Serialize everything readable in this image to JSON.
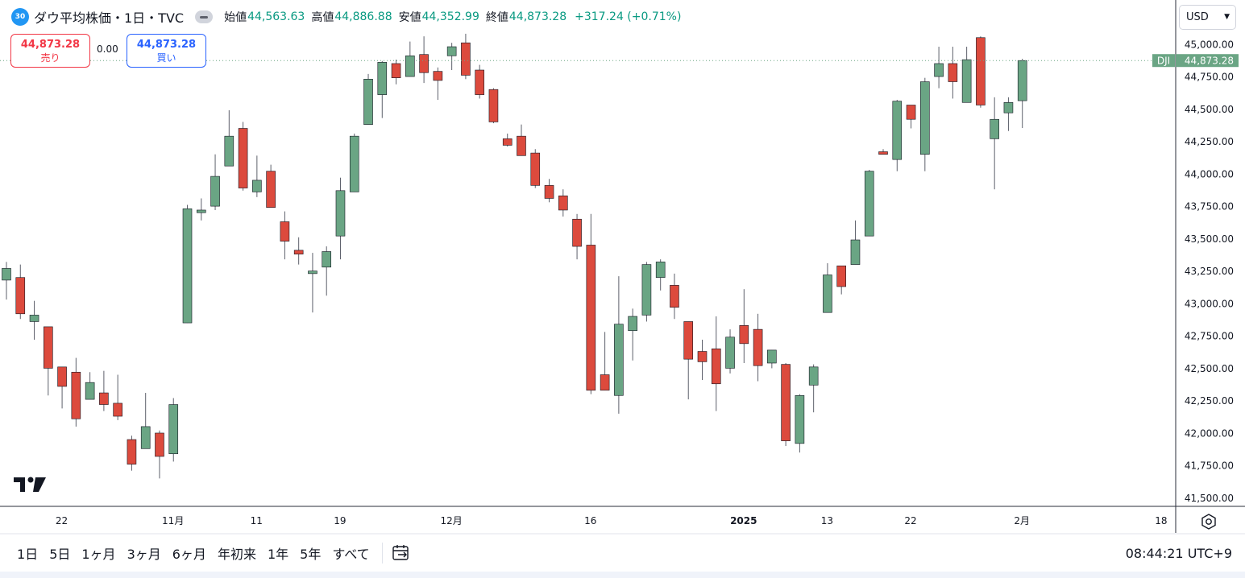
{
  "legend": {
    "badge": "30",
    "title": "ダウ平均株価・1日・TVC",
    "open_label": "始値",
    "open_value": "44,563.63",
    "high_label": "高値",
    "high_value": "44,886.88",
    "low_label": "安値",
    "low_value": "44,352.99",
    "close_label": "終値",
    "close_value": "44,873.28",
    "change": "+317.24 (+0.71%)"
  },
  "order": {
    "sell_price": "44,873.28",
    "sell_label": "売り",
    "spread": "0.00",
    "buy_price": "44,873.28",
    "buy_label": "買い"
  },
  "currency": "USD",
  "price_tag": {
    "symbol": "DJI",
    "value": "44,873.28"
  },
  "y_ticks": [
    "45,000.00",
    "44,750.00",
    "44,500.00",
    "44,250.00",
    "44,000.00",
    "43,750.00",
    "43,500.00",
    "43,250.00",
    "43,000.00",
    "42,750.00",
    "42,500.00",
    "42,250.00",
    "42,000.00",
    "41,750.00",
    "41,500.00"
  ],
  "x_ticks": [
    {
      "label": "22",
      "index": 2,
      "bold": false
    },
    {
      "label": "11月",
      "index": 10,
      "bold": false
    },
    {
      "label": "11",
      "index": 16,
      "bold": false
    },
    {
      "label": "19",
      "index": 22,
      "bold": false
    },
    {
      "label": "12月",
      "index": 30,
      "bold": false
    },
    {
      "label": "16",
      "index": 40,
      "bold": false
    },
    {
      "label": "2025",
      "index": 51,
      "bold": true
    },
    {
      "label": "13",
      "index": 57,
      "bold": false
    },
    {
      "label": "22",
      "index": 63,
      "bold": false
    },
    {
      "label": "2月",
      "index": 71,
      "bold": false
    },
    {
      "label": "18",
      "index": 81,
      "bold": false
    }
  ],
  "ranges": [
    "1日",
    "5日",
    "1ヶ月",
    "3ヶ月",
    "6ヶ月",
    "年初来",
    "1年",
    "5年",
    "すべて"
  ],
  "clock": "08:44:21 UTC+9",
  "colors": {
    "up": "#6aa584",
    "down": "#dc4a3d",
    "wick": "#5d606b",
    "tag": "#6aa584"
  },
  "chart_data": {
    "type": "candlestick",
    "y_min": 41441,
    "y_max": 45123,
    "last_price": 44873.28,
    "candles": [
      {
        "o": 43180,
        "h": 43320,
        "l": 43030,
        "c": 43270
      },
      {
        "o": 43200,
        "h": 43300,
        "l": 42880,
        "c": 42920
      },
      {
        "o": 42860,
        "h": 43020,
        "l": 42720,
        "c": 42910
      },
      {
        "o": 42820,
        "h": 42820,
        "l": 42290,
        "c": 42500
      },
      {
        "o": 42510,
        "h": 42510,
        "l": 42190,
        "c": 42360
      },
      {
        "o": 42470,
        "h": 42580,
        "l": 42050,
        "c": 42110
      },
      {
        "o": 42260,
        "h": 42470,
        "l": 42260,
        "c": 42390
      },
      {
        "o": 42310,
        "h": 42480,
        "l": 42170,
        "c": 42220
      },
      {
        "o": 42230,
        "h": 42450,
        "l": 42100,
        "c": 42130
      },
      {
        "o": 41950,
        "h": 41980,
        "l": 41710,
        "c": 41760
      },
      {
        "o": 41880,
        "h": 42310,
        "l": 41880,
        "c": 42050
      },
      {
        "o": 42000,
        "h": 42020,
        "l": 41650,
        "c": 41820
      },
      {
        "o": 41840,
        "h": 42270,
        "l": 41780,
        "c": 42220
      },
      {
        "o": 42850,
        "h": 43760,
        "l": 42850,
        "c": 43730
      },
      {
        "o": 43700,
        "h": 43810,
        "l": 43640,
        "c": 43720
      },
      {
        "o": 43750,
        "h": 44150,
        "l": 43720,
        "c": 43980
      },
      {
        "o": 44060,
        "h": 44490,
        "l": 44060,
        "c": 44290
      },
      {
        "o": 44350,
        "h": 44400,
        "l": 43870,
        "c": 43890
      },
      {
        "o": 43860,
        "h": 44140,
        "l": 43820,
        "c": 43950
      },
      {
        "o": 44020,
        "h": 44070,
        "l": 43750,
        "c": 43740
      },
      {
        "o": 43630,
        "h": 43710,
        "l": 43340,
        "c": 43480
      },
      {
        "o": 43410,
        "h": 43510,
        "l": 43300,
        "c": 43380
      },
      {
        "o": 43230,
        "h": 43390,
        "l": 42930,
        "c": 43250
      },
      {
        "o": 43280,
        "h": 43440,
        "l": 43060,
        "c": 43400
      },
      {
        "o": 43520,
        "h": 43970,
        "l": 43340,
        "c": 43870
      },
      {
        "o": 43860,
        "h": 44310,
        "l": 43860,
        "c": 44290
      },
      {
        "o": 44380,
        "h": 44770,
        "l": 44380,
        "c": 44730
      },
      {
        "o": 44610,
        "h": 44870,
        "l": 44430,
        "c": 44860
      },
      {
        "o": 44850,
        "h": 44880,
        "l": 44690,
        "c": 44740
      },
      {
        "o": 44750,
        "h": 45020,
        "l": 44760,
        "c": 44910
      },
      {
        "o": 44920,
        "h": 45060,
        "l": 44700,
        "c": 44780
      },
      {
        "o": 44790,
        "h": 44820,
        "l": 44570,
        "c": 44720
      },
      {
        "o": 44910,
        "h": 45010,
        "l": 44800,
        "c": 44980
      },
      {
        "o": 45010,
        "h": 45080,
        "l": 44730,
        "c": 44760
      },
      {
        "o": 44800,
        "h": 44840,
        "l": 44580,
        "c": 44610
      },
      {
        "o": 44650,
        "h": 44660,
        "l": 44390,
        "c": 44400
      },
      {
        "o": 44270,
        "h": 44310,
        "l": 44210,
        "c": 44220
      },
      {
        "o": 44290,
        "h": 44380,
        "l": 44160,
        "c": 44140
      },
      {
        "o": 44160,
        "h": 44190,
        "l": 43890,
        "c": 43910
      },
      {
        "o": 43910,
        "h": 43960,
        "l": 43780,
        "c": 43810
      },
      {
        "o": 43830,
        "h": 43880,
        "l": 43670,
        "c": 43720
      },
      {
        "o": 43650,
        "h": 43690,
        "l": 43340,
        "c": 43440
      },
      {
        "o": 43450,
        "h": 43690,
        "l": 42300,
        "c": 42330
      },
      {
        "o": 42450,
        "h": 42780,
        "l": 42330,
        "c": 42330
      },
      {
        "o": 42290,
        "h": 43210,
        "l": 42150,
        "c": 42840
      },
      {
        "o": 42790,
        "h": 42960,
        "l": 42560,
        "c": 42900
      },
      {
        "o": 42910,
        "h": 43320,
        "l": 42860,
        "c": 43300
      },
      {
        "o": 43200,
        "h": 43340,
        "l": 43100,
        "c": 43320
      },
      {
        "o": 43140,
        "h": 43230,
        "l": 42880,
        "c": 42970
      },
      {
        "o": 42860,
        "h": 42850,
        "l": 42260,
        "c": 42570
      },
      {
        "o": 42630,
        "h": 42720,
        "l": 42410,
        "c": 42550
      },
      {
        "o": 42650,
        "h": 42900,
        "l": 42170,
        "c": 42380
      },
      {
        "o": 42500,
        "h": 42800,
        "l": 42460,
        "c": 42740
      },
      {
        "o": 42830,
        "h": 43110,
        "l": 42540,
        "c": 42690
      },
      {
        "o": 42800,
        "h": 42920,
        "l": 42400,
        "c": 42520
      },
      {
        "o": 42540,
        "h": 42640,
        "l": 42500,
        "c": 42640
      },
      {
        "o": 42530,
        "h": 42540,
        "l": 41900,
        "c": 41940
      },
      {
        "o": 41920,
        "h": 42300,
        "l": 41850,
        "c": 42290
      },
      {
        "o": 42370,
        "h": 42530,
        "l": 42160,
        "c": 42510
      },
      {
        "o": 42930,
        "h": 43310,
        "l": 42930,
        "c": 43220
      },
      {
        "o": 43290,
        "h": 43280,
        "l": 43070,
        "c": 43130
      },
      {
        "o": 43300,
        "h": 43640,
        "l": 43310,
        "c": 43490
      },
      {
        "o": 43520,
        "h": 44030,
        "l": 43520,
        "c": 44020
      },
      {
        "o": 44170,
        "h": 44190,
        "l": 44160,
        "c": 44150
      },
      {
        "o": 44110,
        "h": 44570,
        "l": 44020,
        "c": 44560
      },
      {
        "o": 44530,
        "h": 44530,
        "l": 44350,
        "c": 44420
      },
      {
        "o": 44150,
        "h": 44740,
        "l": 44020,
        "c": 44710
      },
      {
        "o": 44750,
        "h": 44980,
        "l": 44660,
        "c": 44850
      },
      {
        "o": 44850,
        "h": 44980,
        "l": 44580,
        "c": 44710
      },
      {
        "o": 44550,
        "h": 44980,
        "l": 44580,
        "c": 44880
      },
      {
        "o": 45050,
        "h": 45060,
        "l": 44510,
        "c": 44530
      },
      {
        "o": 44270,
        "h": 44590,
        "l": 43880,
        "c": 44420
      },
      {
        "o": 44470,
        "h": 44590,
        "l": 44330,
        "c": 44550
      },
      {
        "o": 44563.63,
        "h": 44886.88,
        "l": 44352.99,
        "c": 44873.28
      }
    ]
  }
}
